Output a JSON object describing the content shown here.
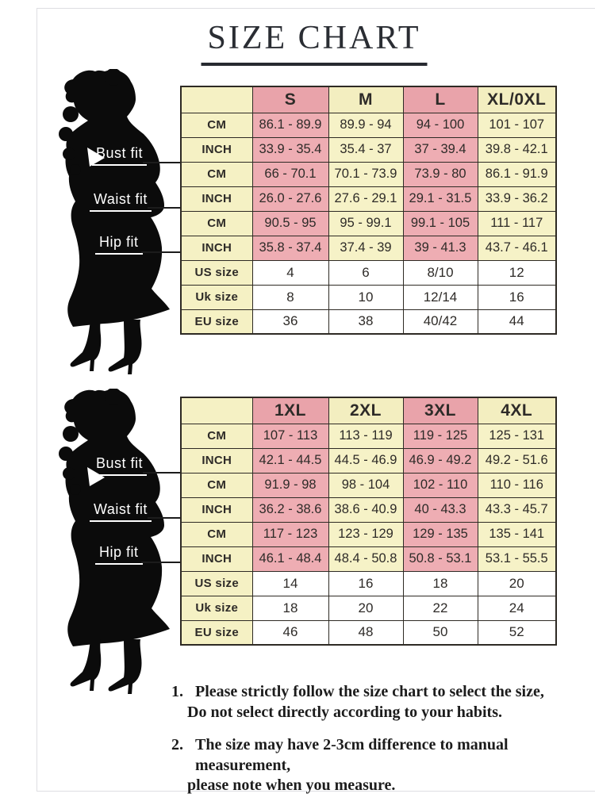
{
  "title": "SIZE CHART",
  "figure": {
    "alt": "woman-silhouette",
    "fit_labels": [
      "Bust fit",
      "Waist fit",
      "Hip fit"
    ]
  },
  "colors": {
    "pink_header": "#e9a3aa",
    "pink_cell": "#eeadb3",
    "cream_header": "#f3eec0",
    "cream_cell": "#f6f2c7",
    "label_cell": "#f5f1c4",
    "border": "#2e2a24",
    "title_text": "#2a2d33",
    "fit_label_text": "#ffffff"
  },
  "tables": [
    {
      "sizes": [
        "S",
        "M",
        "L",
        "XL/0XL"
      ],
      "rows": [
        {
          "label": "CM",
          "group": "bust",
          "values": [
            "86.1 - 89.9",
            "89.9 - 94",
            "94 - 100",
            "101 - 107"
          ]
        },
        {
          "label": "INCH",
          "group": "bust",
          "values": [
            "33.9 - 35.4",
            "35.4 - 37",
            "37 - 39.4",
            "39.8 - 42.1"
          ]
        },
        {
          "label": "CM",
          "group": "waist",
          "values": [
            "66 - 70.1",
            "70.1 - 73.9",
            "73.9 - 80",
            "86.1 - 91.9"
          ]
        },
        {
          "label": "INCH",
          "group": "waist",
          "values": [
            "26.0 - 27.6",
            "27.6 - 29.1",
            "29.1 - 31.5",
            "33.9 - 36.2"
          ]
        },
        {
          "label": "CM",
          "group": "hip",
          "values": [
            "90.5 - 95",
            "95 - 99.1",
            "99.1 - 105",
            "111 - 117"
          ]
        },
        {
          "label": "INCH",
          "group": "hip",
          "values": [
            "35.8 - 37.4",
            "37.4 - 39",
            "39 - 41.3",
            "43.7 - 46.1"
          ]
        },
        {
          "label": "US size",
          "plain": true,
          "values": [
            "4",
            "6",
            "8/10",
            "12"
          ]
        },
        {
          "label": "Uk size",
          "plain": true,
          "values": [
            "8",
            "10",
            "12/14",
            "16"
          ]
        },
        {
          "label": "EU size",
          "plain": true,
          "values": [
            "36",
            "38",
            "40/42",
            "44"
          ]
        }
      ]
    },
    {
      "sizes": [
        "1XL",
        "2XL",
        "3XL",
        "4XL"
      ],
      "rows": [
        {
          "label": "CM",
          "group": "bust",
          "values": [
            "107 - 113",
            "113 - 119",
            "119 - 125",
            "125 - 131"
          ]
        },
        {
          "label": "INCH",
          "group": "bust",
          "values": [
            "42.1 - 44.5",
            "44.5 - 46.9",
            "46.9 - 49.2",
            "49.2 - 51.6"
          ]
        },
        {
          "label": "CM",
          "group": "waist",
          "values": [
            "91.9 - 98",
            "98 - 104",
            "102 - 110",
            "110 - 116"
          ]
        },
        {
          "label": "INCH",
          "group": "waist",
          "values": [
            "36.2 - 38.6",
            "38.6 - 40.9",
            "40 - 43.3",
            "43.3 - 45.7"
          ]
        },
        {
          "label": "CM",
          "group": "hip",
          "values": [
            "117 - 123",
            "123 - 129",
            "129 - 135",
            "135 - 141"
          ]
        },
        {
          "label": "INCH",
          "group": "hip",
          "values": [
            "46.1 - 48.4",
            "48.4 - 50.8",
            "50.8 - 53.1",
            "53.1 - 55.5"
          ]
        },
        {
          "label": "US size",
          "plain": true,
          "values": [
            "14",
            "16",
            "18",
            "20"
          ]
        },
        {
          "label": "Uk size",
          "plain": true,
          "values": [
            "18",
            "20",
            "22",
            "24"
          ]
        },
        {
          "label": "EU size",
          "plain": true,
          "values": [
            "46",
            "48",
            "50",
            "52"
          ]
        }
      ]
    }
  ],
  "notes": [
    {
      "num": "1.",
      "lines": [
        "Please strictly follow the size chart to select the size,",
        "Do not select directly according to your habits."
      ]
    },
    {
      "num": "2.",
      "lines": [
        "The size may have 2-3cm difference  to manual measurement,",
        "please note when you measure."
      ]
    }
  ]
}
